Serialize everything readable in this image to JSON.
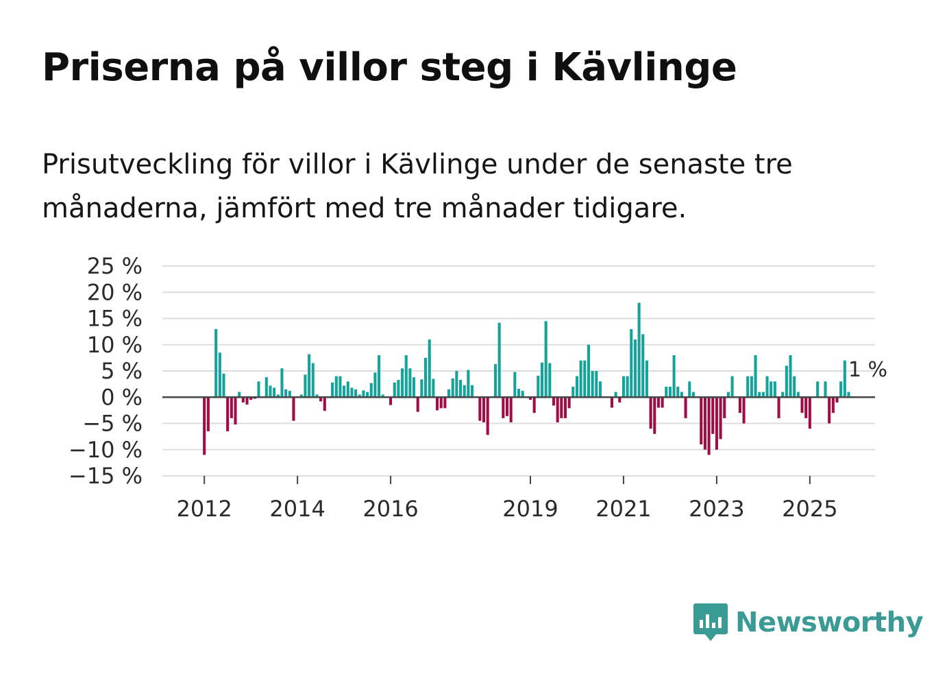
{
  "title": "Priserna på villor steg i Kävlinge",
  "subtitle": "Prisutveckling för villor i Kävlinge under de senaste tre månaderna, jämfört med tre månader tidigare.",
  "brand": {
    "name": "Newsworthy",
    "color": "#3a9b95"
  },
  "colors": {
    "positive": "#14a39b",
    "negative": "#9e0d46",
    "grid": "#dddddd",
    "zero_line": "#444444"
  },
  "chart_data": {
    "type": "bar",
    "title": "Priserna på villor steg i Kävlinge",
    "xlabel": "",
    "ylabel": "",
    "ylim": [
      -15,
      25
    ],
    "y_ticks": [
      25,
      20,
      15,
      10,
      5,
      0,
      -5,
      -10,
      -15
    ],
    "y_tick_labels": [
      "25 %",
      "20 %",
      "15 %",
      "10 %",
      "5 %",
      "0 %",
      "−5 %",
      "−10 %",
      "−15 %"
    ],
    "x_ticks": [
      2012,
      2014,
      2016,
      2019,
      2021,
      2023,
      2025
    ],
    "x_tick_labels": [
      "2012",
      "2014",
      "2016",
      "2019",
      "2021",
      "2023",
      "2025"
    ],
    "x_start": 2011.1,
    "x_end": 2026.4,
    "start_date": "2012-01",
    "frequency": "monthly",
    "annotation": {
      "text": "1 %",
      "value": 1
    },
    "values": [
      -11,
      -6.5,
      0,
      13,
      8.5,
      4.5,
      -6.5,
      -4,
      -5.2,
      1,
      -1,
      -1.4,
      -0.5,
      -0.3,
      3,
      0,
      3.8,
      2.2,
      1.8,
      0.5,
      5.5,
      1.5,
      1.2,
      -4.5,
      0,
      0.5,
      4.3,
      8.2,
      6.5,
      0.5,
      -0.8,
      -2.6,
      0,
      2.8,
      4,
      4,
      2.2,
      3,
      1.8,
      1.5,
      0.5,
      1.3,
      1,
      2.7,
      4.7,
      8,
      0.5,
      0,
      -1.5,
      2.8,
      3.3,
      5.5,
      8,
      5.5,
      3.8,
      -2.8,
      3.4,
      7.5,
      11,
      3.5,
      -2.5,
      -2.1,
      -2.1,
      1.5,
      3.6,
      5,
      3.3,
      2.3,
      5.2,
      2.3,
      0,
      -4.5,
      -4.8,
      -7.2,
      0,
      6.3,
      14.2,
      -4,
      -3.6,
      -4.8,
      4.8,
      1.6,
      1.2,
      0,
      -0.5,
      -3,
      4.1,
      6.6,
      14.5,
      6.5,
      -1.6,
      -4.8,
      -4,
      -4,
      -2.1,
      2,
      4,
      7,
      7,
      10,
      5,
      5,
      3,
      0,
      0,
      -2,
      1,
      -1,
      4,
      4,
      13,
      11,
      18,
      12,
      7,
      -6,
      -7,
      -2,
      -2,
      2,
      2,
      8,
      2,
      1,
      -4,
      3,
      1,
      0,
      -9,
      -10,
      -11,
      -7,
      -10,
      -8,
      -4,
      1,
      4,
      0,
      -3,
      -5,
      4,
      4,
      8,
      1,
      1,
      4,
      3,
      3,
      -4,
      1,
      6,
      8,
      4,
      1,
      -3,
      -4,
      -6,
      0,
      3,
      0,
      3,
      -5,
      -3,
      -1,
      3,
      7,
      1
    ]
  }
}
